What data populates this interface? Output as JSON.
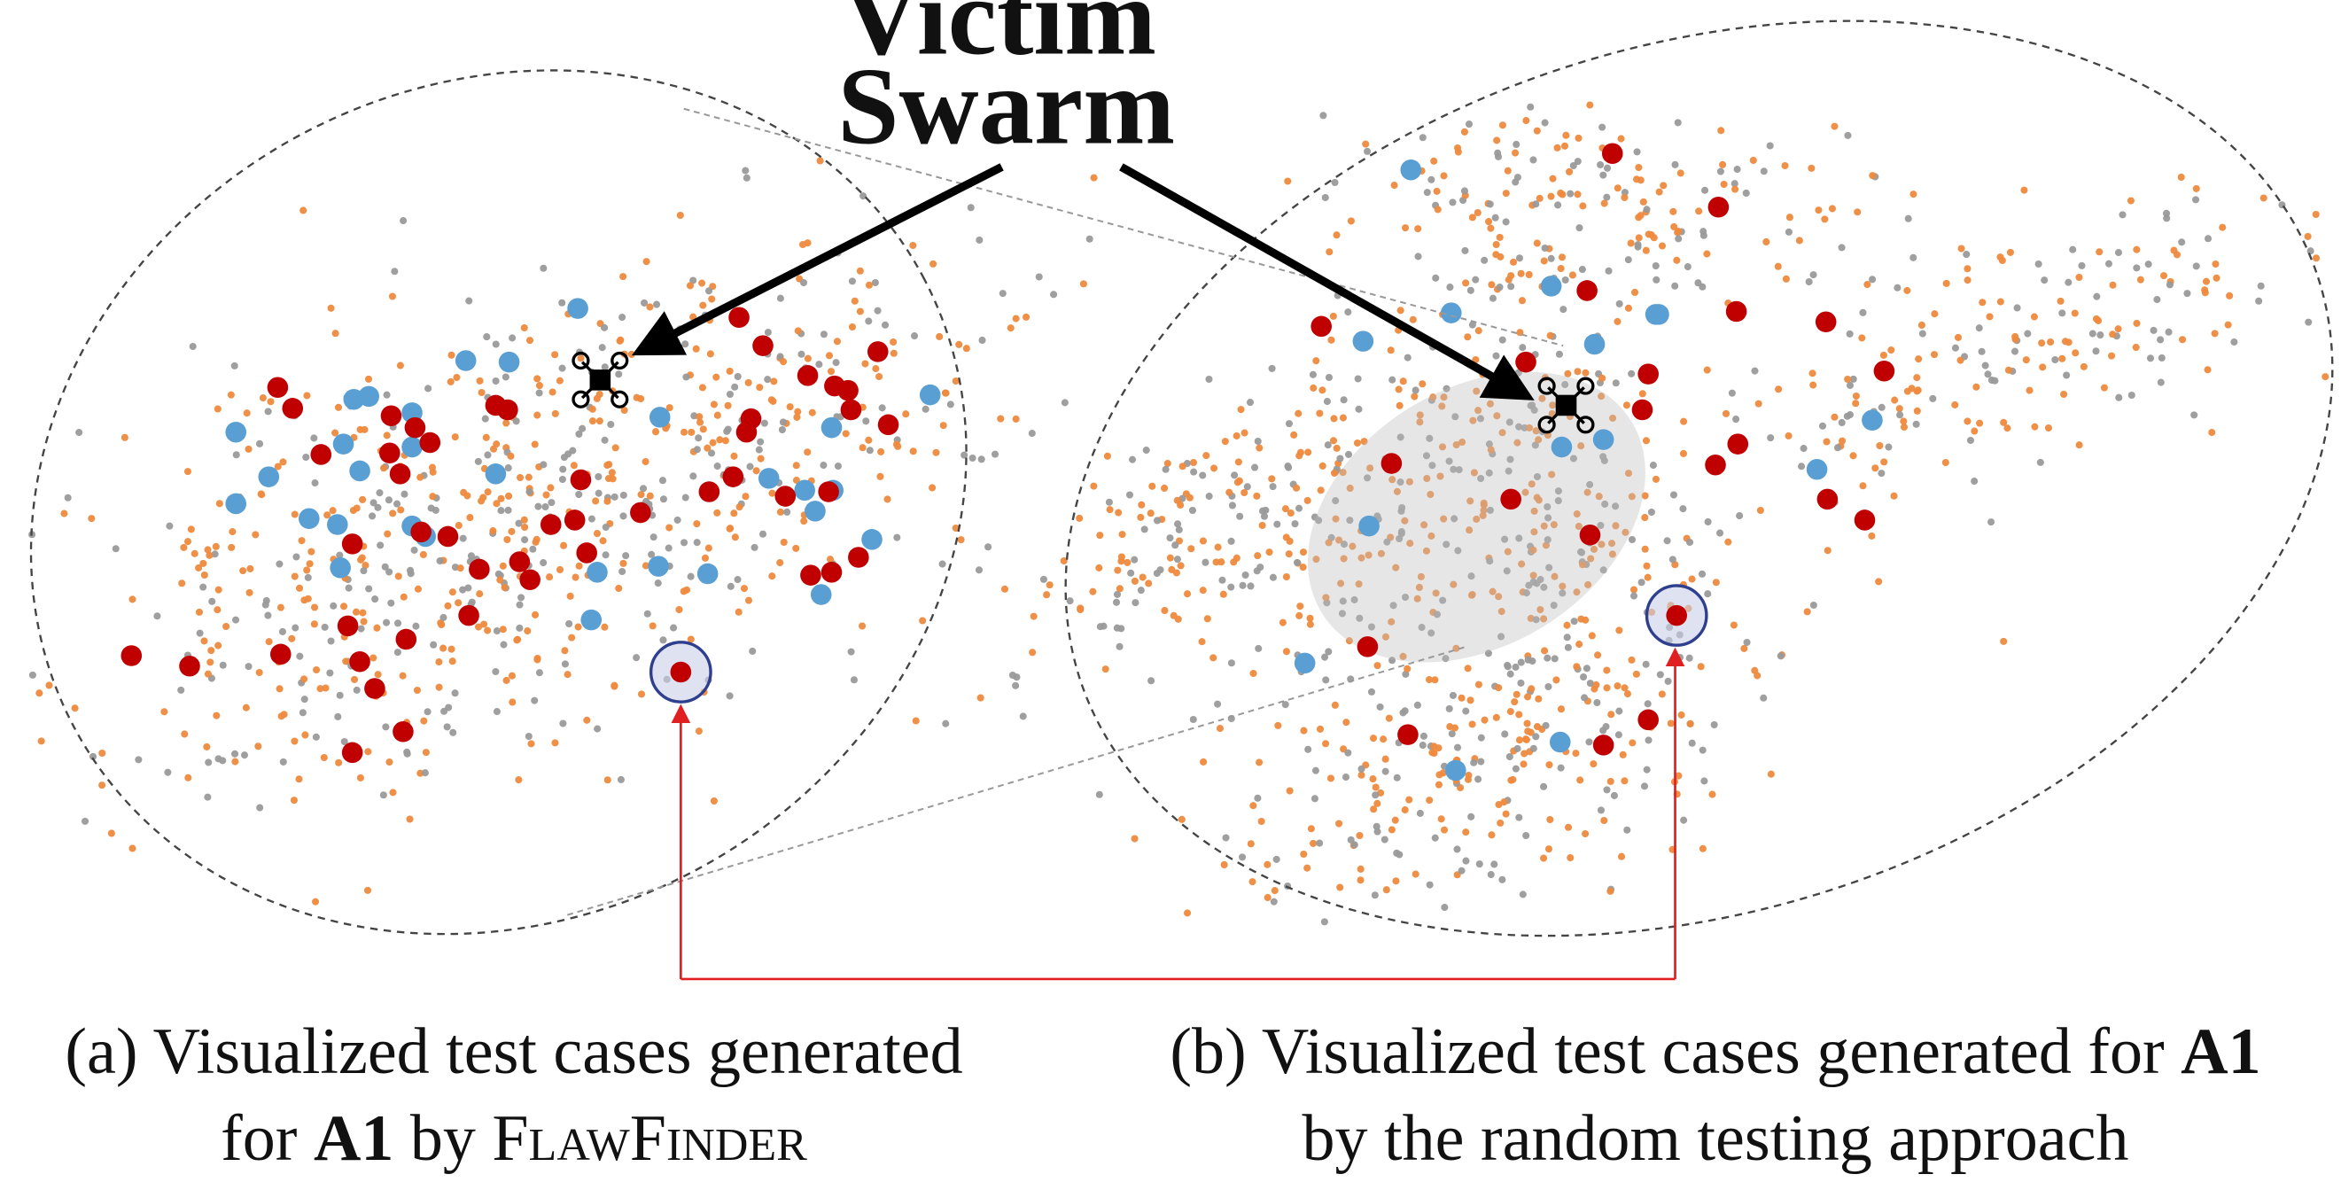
{
  "chart_data": {
    "type": "scatter",
    "title": "",
    "colors": {
      "orange_point": "#ee8a3e",
      "gray_point": "#9a9a9a",
      "blue_point": "#5a9fd4",
      "red_point": "#c00000",
      "highlight_ring": "#2e3f8f",
      "link_arrow": "#e02020",
      "annotation_arrow": "#000000"
    },
    "annotation": {
      "line1": "Victim",
      "line2": "Swarm"
    },
    "marker": {
      "name": "drone-icon"
    },
    "panels": [
      {
        "id": "a",
        "caption": {
          "prefix": "(a) Visualized test cases generated",
          "line2_pre": "for ",
          "bold": "A1",
          "line2_mid": " by ",
          "smallcaps": "FlawFinder"
        },
        "red_points": [
          [
            88,
            440
          ],
          [
            127,
            447
          ],
          [
            188,
            439
          ],
          [
            186,
            260
          ],
          [
            196,
            274
          ],
          [
            215,
            305
          ],
          [
            233,
            420
          ],
          [
            236,
            505
          ],
          [
            241,
            444
          ],
          [
            251,
            462
          ],
          [
            262,
            279
          ],
          [
            270,
            491
          ],
          [
            272,
            429
          ],
          [
            278,
            287
          ],
          [
            288,
            297
          ],
          [
            268,
            318
          ],
          [
            261,
            304
          ],
          [
            282,
            357
          ],
          [
            300,
            360
          ],
          [
            314,
            413
          ],
          [
            321,
            382
          ],
          [
            332,
            272
          ],
          [
            340,
            275
          ],
          [
            348,
            377
          ],
          [
            355,
            389
          ],
          [
            369,
            352
          ],
          [
            385,
            349
          ],
          [
            389,
            322
          ],
          [
            393,
            371
          ],
          [
            429,
            344
          ],
          [
            475,
            330
          ],
          [
            491,
            320
          ],
          [
            500,
            290
          ],
          [
            503,
            281
          ],
          [
            495,
            213
          ],
          [
            511,
            232
          ],
          [
            526,
            333
          ],
          [
            541,
            252
          ],
          [
            543,
            386
          ],
          [
            557,
            384
          ],
          [
            575,
            374
          ],
          [
            555,
            330
          ],
          [
            595,
            285
          ],
          [
            588,
            236
          ],
          [
            559,
            259
          ],
          [
            568,
            262
          ],
          [
            570,
            275
          ],
          [
            236,
            365
          ]
        ],
        "blue_points": [
          [
            158,
            290
          ],
          [
            158,
            338
          ],
          [
            180,
            320
          ],
          [
            207,
            348
          ],
          [
            226,
            352
          ],
          [
            228,
            381
          ],
          [
            230,
            298
          ],
          [
            237,
            268
          ],
          [
            247,
            266
          ],
          [
            276,
            277
          ],
          [
            276,
            300
          ],
          [
            276,
            353
          ],
          [
            285,
            360
          ],
          [
            312,
            242
          ],
          [
            332,
            318
          ],
          [
            341,
            243
          ],
          [
            387,
            207
          ],
          [
            400,
            384
          ],
          [
            396,
            416
          ],
          [
            442,
            280
          ],
          [
            441,
            380
          ],
          [
            474,
            385
          ],
          [
            515,
            321
          ],
          [
            539,
            329
          ],
          [
            546,
            343
          ],
          [
            550,
            399
          ],
          [
            557,
            287
          ],
          [
            558,
            329
          ],
          [
            584,
            362
          ],
          [
            623,
            265
          ],
          [
            241,
            316
          ]
        ],
        "highlight_point": [
          456,
          451
        ]
      },
      {
        "id": "b",
        "caption": {
          "prefix": "(b) Visualized test cases generated for ",
          "bold": "A1",
          "line2": "by the random testing approach"
        },
        "red_points": [
          [
            885,
            219
          ],
          [
            916,
            434
          ],
          [
            932,
            311
          ],
          [
            943,
            493
          ],
          [
            1012,
            335
          ],
          [
            1022,
            243
          ],
          [
            1063,
            195
          ],
          [
            1065,
            359
          ],
          [
            1074,
            500
          ],
          [
            1080,
            103
          ],
          [
            1100,
            275
          ],
          [
            1104,
            251
          ],
          [
            1104,
            483
          ],
          [
            1149,
            312
          ],
          [
            1151,
            139
          ],
          [
            1163,
            209
          ],
          [
            1164,
            298
          ],
          [
            1223,
            216
          ],
          [
            1224,
            335
          ],
          [
            1249,
            349
          ],
          [
            1262,
            249
          ]
        ],
        "blue_points": [
          [
            874,
            445
          ],
          [
            913,
            229
          ],
          [
            917,
            353
          ],
          [
            945,
            114
          ],
          [
            972,
            210
          ],
          [
            975,
            517
          ],
          [
            1039,
            192
          ],
          [
            1045,
            498
          ],
          [
            1046,
            300
          ],
          [
            1068,
            231
          ],
          [
            1074,
            295
          ],
          [
            1109,
            211
          ],
          [
            1111,
            211
          ],
          [
            1217,
            315
          ],
          [
            1254,
            282
          ]
        ],
        "highlight_point": [
          1123,
          413
        ]
      }
    ]
  }
}
